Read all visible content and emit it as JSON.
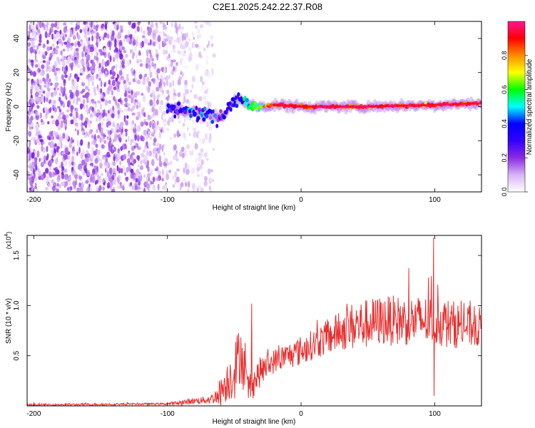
{
  "title": "C2E1.2025.242.22.37.R08",
  "chart_data": [
    {
      "type": "heatmap",
      "name": "spectrogram",
      "xlabel": "Height of straight line (km)",
      "ylabel": "Frequency (Hz)",
      "xlim": [
        -205,
        135
      ],
      "ylim": [
        -50,
        50
      ],
      "x_ticks": [
        -200,
        -100,
        0,
        100
      ],
      "y_ticks": [
        -40,
        -20,
        0,
        20,
        40
      ],
      "colorbar": {
        "label": "Normalized spectral amplitude",
        "range": [
          0,
          1
        ],
        "ticks": [
          "0.0",
          "0.2",
          "0.4",
          "0.6",
          "0.8"
        ],
        "colors": [
          "#ffffff",
          "#d7b3f5",
          "#8a2be2",
          "#3300ff",
          "#0000ff",
          "#00ffff",
          "#00ff00",
          "#ffff00",
          "#ff8c00",
          "#ff0000",
          "#ff1493"
        ]
      },
      "features": [
        {
          "label": "noise region",
          "x_range": [
            -205,
            -65
          ],
          "freq_range": [
            -50,
            50
          ],
          "amplitude": 0.15
        },
        {
          "label": "signal track",
          "x": [
            -100,
            -90,
            -80,
            -70,
            -60,
            -55,
            -50,
            -45,
            -40,
            -35,
            -30,
            -20,
            0,
            50,
            100,
            135
          ],
          "freq": [
            0,
            -2,
            -3,
            -5,
            -6,
            -3,
            4,
            4,
            2,
            0,
            0,
            1,
            0,
            0,
            1,
            2
          ],
          "amplitude": [
            0.25,
            0.35,
            0.35,
            0.35,
            0.3,
            0.35,
            0.4,
            0.45,
            0.5,
            0.6,
            0.7,
            0.85,
            0.9,
            0.9,
            0.9,
            0.9
          ]
        }
      ]
    },
    {
      "type": "line",
      "name": "snr",
      "xlabel": "Height of straight line (km)",
      "ylabel": "SNR (10 * v/v)",
      "multiplier": "(x10",
      "multiplier_exp": "4",
      "multiplier_close": ")",
      "xlim": [
        -205,
        135
      ],
      "ylim": [
        0,
        1.7
      ],
      "x_ticks": [
        -200,
        -100,
        0,
        100
      ],
      "y_ticks": [
        0.5,
        1.0,
        1.5
      ],
      "y_tick_labels": [
        "0.5",
        "1.0",
        "1.5"
      ],
      "series_color": "#e83030",
      "envelope": {
        "x": [
          -205,
          -100,
          -90,
          -80,
          -70,
          -65,
          -60,
          -55,
          -50,
          -45,
          -40,
          -35,
          -30,
          -20,
          -10,
          0,
          10,
          20,
          30,
          40,
          50,
          60,
          70,
          80,
          90,
          100,
          110,
          120,
          135
        ],
        "mean": [
          0.01,
          0.02,
          0.03,
          0.05,
          0.06,
          0.08,
          0.15,
          0.25,
          0.35,
          0.55,
          0.15,
          0.25,
          0.35,
          0.45,
          0.5,
          0.55,
          0.62,
          0.68,
          0.75,
          0.8,
          0.82,
          0.85,
          0.85,
          0.85,
          0.85,
          0.85,
          0.82,
          0.8,
          0.78
        ],
        "spread": [
          0.01,
          0.01,
          0.03,
          0.03,
          0.04,
          0.06,
          0.15,
          0.2,
          0.3,
          0.3,
          0.2,
          0.15,
          0.15,
          0.12,
          0.13,
          0.15,
          0.15,
          0.18,
          0.2,
          0.25,
          0.25,
          0.25,
          0.25,
          0.25,
          0.25,
          0.25,
          0.25,
          0.22,
          0.2
        ]
      },
      "spikes": [
        {
          "x": -37,
          "y": 1.02
        },
        {
          "x": 99,
          "y": 1.68
        },
        {
          "x": 99.5,
          "y": 0.1
        }
      ]
    }
  ]
}
